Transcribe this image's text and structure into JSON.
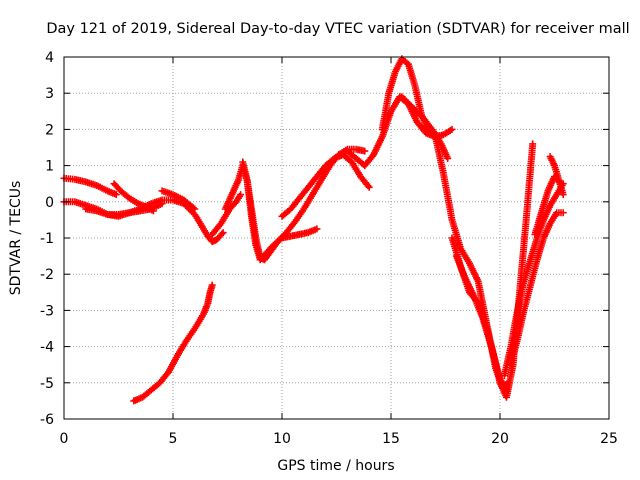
{
  "chart_data": {
    "type": "scatter",
    "title": "Day 121 of 2019, Sidereal Day-to-day VTEC variation (SDTVAR) for receiver mall",
    "xlabel": "GPS time / hours",
    "ylabel": "SDTVAR / TECUs",
    "xlim": [
      0,
      25
    ],
    "ylim": [
      -6,
      4
    ],
    "x_ticks": [
      0,
      5,
      10,
      15,
      20,
      25
    ],
    "y_ticks": [
      -6,
      -5,
      -4,
      -3,
      -2,
      -1,
      0,
      1,
      2,
      3,
      4
    ],
    "grid": true,
    "legend": "none",
    "marker": "plus",
    "color": "#ff0000",
    "series": [
      {
        "x": [
          0.0,
          0.5,
          1.0,
          1.5,
          2.0,
          2.4
        ],
        "y": [
          0.65,
          0.62,
          0.55,
          0.45,
          0.3,
          0.2
        ]
      },
      {
        "x": [
          0.0,
          0.5,
          1.0,
          1.5,
          2.0,
          2.5,
          3.0,
          3.5,
          4.0,
          4.5,
          5.0,
          5.5,
          6.0,
          6.3,
          6.6,
          6.8,
          7.0,
          7.3
        ],
        "y": [
          0.0,
          0.0,
          -0.1,
          -0.2,
          -0.35,
          -0.4,
          -0.3,
          -0.2,
          -0.05,
          0.05,
          0.05,
          -0.05,
          -0.35,
          -0.65,
          -0.95,
          -1.1,
          -1.05,
          -0.85
        ]
      },
      {
        "x": [
          1.0,
          1.5,
          2.0,
          2.5,
          3.0,
          3.5,
          4.0,
          4.5
        ],
        "y": [
          -0.2,
          -0.25,
          -0.35,
          -0.35,
          -0.3,
          -0.25,
          -0.2,
          -0.05
        ]
      },
      {
        "x": [
          2.3,
          2.6,
          3.0,
          3.4,
          3.8,
          4.1
        ],
        "y": [
          0.5,
          0.3,
          0.1,
          -0.05,
          -0.15,
          -0.25
        ]
      },
      {
        "x": [
          4.5,
          5.0,
          5.5,
          5.8,
          6.0
        ],
        "y": [
          0.3,
          0.2,
          0.05,
          -0.1,
          -0.2
        ]
      },
      {
        "x": [
          3.2,
          3.6,
          4.0,
          4.4,
          4.8,
          5.2,
          5.6,
          6.0,
          6.4,
          6.6,
          6.7,
          6.8
        ],
        "y": [
          -5.5,
          -5.4,
          -5.2,
          -5.0,
          -4.7,
          -4.25,
          -3.85,
          -3.5,
          -3.1,
          -2.8,
          -2.5,
          -2.3
        ]
      },
      {
        "x": [
          6.8,
          7.2,
          7.6,
          7.9,
          8.1
        ],
        "y": [
          -0.9,
          -0.6,
          -0.2,
          0.0,
          0.2
        ]
      },
      {
        "x": [
          7.4,
          7.7,
          8.0,
          8.2,
          8.4,
          8.6,
          8.8,
          9.0,
          9.3,
          9.6,
          10.0,
          10.4,
          10.8,
          11.2,
          11.6
        ],
        "y": [
          -0.2,
          0.2,
          0.6,
          1.0,
          0.6,
          -0.4,
          -1.2,
          -1.6,
          -1.4,
          -1.2,
          -1.0,
          -0.95,
          -0.9,
          -0.85,
          -0.75
        ]
      },
      {
        "x": [
          8.2,
          8.4,
          8.6,
          8.8,
          9.0,
          9.2,
          9.5,
          9.8,
          10.2,
          10.6,
          11.0,
          11.4,
          11.8,
          12.2,
          12.6,
          13.0,
          13.4,
          13.8
        ],
        "y": [
          1.1,
          0.6,
          -0.2,
          -1.0,
          -1.55,
          -1.6,
          -1.35,
          -1.1,
          -0.85,
          -0.55,
          -0.2,
          0.2,
          0.6,
          1.0,
          1.3,
          1.45,
          1.45,
          1.4
        ]
      },
      {
        "x": [
          10.0,
          10.4,
          10.8,
          11.2,
          11.6,
          12.0,
          12.4,
          12.8,
          13.2,
          13.6,
          14.0
        ],
        "y": [
          -0.4,
          -0.2,
          0.1,
          0.4,
          0.7,
          1.0,
          1.2,
          1.3,
          1.1,
          0.7,
          0.4
        ]
      },
      {
        "x": [
          12.6,
          13.0,
          13.4,
          13.8,
          14.2,
          14.6,
          15.0,
          15.4,
          15.8,
          16.2,
          16.6,
          17.0,
          17.4,
          17.8
        ],
        "y": [
          1.3,
          1.4,
          1.2,
          1.0,
          1.3,
          1.8,
          2.5,
          2.9,
          2.7,
          2.2,
          1.9,
          1.8,
          1.85,
          2.0
        ]
      },
      {
        "x": [
          14.6,
          14.9,
          15.2,
          15.5,
          15.8,
          16.1,
          16.4,
          16.7,
          17.0,
          17.3,
          17.6
        ],
        "y": [
          2.0,
          3.0,
          3.6,
          3.95,
          3.8,
          3.2,
          2.4,
          2.0,
          1.9,
          1.6,
          1.2
        ]
      },
      {
        "x": [
          15.5,
          16.0,
          16.5,
          17.0,
          17.4,
          17.8,
          18.2,
          18.6,
          19.0,
          19.4,
          19.8,
          20.1,
          20.4
        ],
        "y": [
          2.9,
          2.6,
          2.3,
          1.9,
          0.8,
          -0.5,
          -1.3,
          -1.7,
          -2.2,
          -3.4,
          -4.6,
          -5.1,
          -5.0
        ]
      },
      {
        "x": [
          17.8,
          18.2,
          18.6,
          19.0,
          19.4,
          19.7,
          20.0,
          20.3,
          20.6,
          20.9,
          21.2,
          21.5
        ],
        "y": [
          -1.0,
          -1.8,
          -2.5,
          -2.8,
          -3.5,
          -4.2,
          -5.0,
          -5.4,
          -4.5,
          -2.5,
          -0.5,
          1.6
        ]
      },
      {
        "x": [
          18.0,
          18.4,
          18.8,
          19.2,
          19.6,
          20.0,
          20.3
        ],
        "y": [
          -1.5,
          -2.1,
          -2.6,
          -3.2,
          -4.0,
          -4.9,
          -5.2
        ]
      },
      {
        "x": [
          20.2,
          20.5,
          20.8,
          21.1,
          21.4,
          21.7,
          22.0,
          22.3,
          22.6,
          22.9
        ],
        "y": [
          -4.8,
          -4.0,
          -3.0,
          -2.2,
          -1.6,
          -1.0,
          -0.5,
          -0.1,
          0.2,
          0.5
        ]
      },
      {
        "x": [
          20.5,
          20.8,
          21.1,
          21.4,
          21.7,
          22.0,
          22.3,
          22.6,
          22.9
        ],
        "y": [
          -4.5,
          -3.8,
          -3.0,
          -2.3,
          -1.6,
          -1.0,
          -0.6,
          -0.3,
          -0.3
        ]
      },
      {
        "x": [
          21.6,
          21.9,
          22.2,
          22.5,
          22.8
        ],
        "y": [
          -0.9,
          -0.3,
          0.3,
          0.7,
          0.5
        ]
      },
      {
        "x": [
          22.3,
          22.5,
          22.7,
          22.9
        ],
        "y": [
          1.25,
          1.0,
          0.6,
          0.2
        ]
      }
    ]
  }
}
